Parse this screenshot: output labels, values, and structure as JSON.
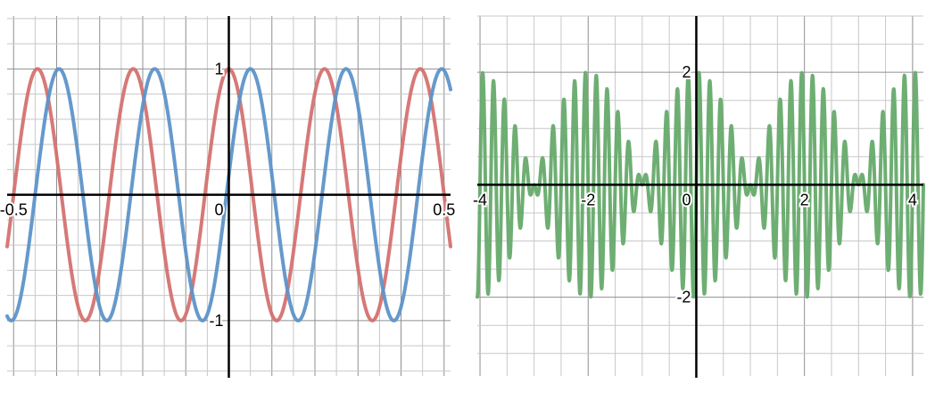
{
  "chart_data": [
    {
      "type": "line",
      "xlim": [
        -0.515,
        0.515
      ],
      "ylim": [
        -1.44,
        1.42
      ],
      "grid": true,
      "x_ticks": [
        "-0.5",
        "0",
        "0.5"
      ],
      "y_ticks": [
        "1",
        "-1"
      ],
      "series": [
        {
          "expression": "y = cos(2π·4.5·x)",
          "frequency": 4.5,
          "phase": 0,
          "amplitude": 1,
          "color": "#d47270"
        },
        {
          "expression": "y = cos(2π·4.5·(x − 0.05))",
          "frequency": 4.5,
          "phase": 0.05,
          "amplitude": 1,
          "color": "#5e94c8"
        }
      ]
    },
    {
      "type": "line",
      "xlim": [
        -4.05,
        4.2
      ],
      "ylim": [
        -3.4,
        3.0
      ],
      "grid": true,
      "x_ticks": [
        "-4",
        "-2",
        "0",
        "2",
        "4"
      ],
      "y_ticks": [
        "2",
        "-2"
      ],
      "series": [
        {
          "expression": "y = 2·cos(2π·0.25·x)·sin(2π·5·x)",
          "envelope_amplitude": 2,
          "envelope_frequency": 0.25,
          "carrier_frequency": 5,
          "color": "#66aa6b"
        }
      ]
    }
  ]
}
